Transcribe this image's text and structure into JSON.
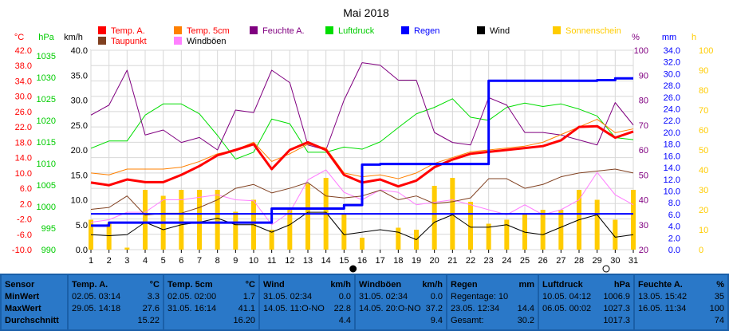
{
  "chart_data": {
    "type": "line",
    "title": "Mai 2018",
    "x": [
      1,
      2,
      3,
      4,
      5,
      6,
      7,
      8,
      9,
      10,
      11,
      12,
      13,
      14,
      15,
      16,
      17,
      18,
      19,
      20,
      21,
      22,
      23,
      24,
      25,
      26,
      27,
      28,
      29,
      30,
      31
    ],
    "xlim": [
      1,
      31
    ],
    "axes": {
      "temp_c": {
        "label": "°C",
        "min": -10,
        "max": 42,
        "ticks": [
          42.0,
          38.0,
          34.0,
          30.0,
          26.0,
          22.0,
          18.0,
          14.0,
          10.0,
          6.0,
          2.0,
          -2.0,
          -6.0,
          -10.0
        ],
        "color": "#ff0000"
      },
      "pressure_hpa": {
        "label": "hPa",
        "min": 990,
        "max": 1036.25,
        "ticks": [
          1035,
          1030,
          1025,
          1020,
          1015,
          1010,
          1005,
          1000,
          995,
          990
        ],
        "color": "#00cc00"
      },
      "wind_kmh": {
        "label": "km/h",
        "min": 0,
        "max": 40,
        "ticks": [
          40.0,
          35.0,
          30.0,
          25.0,
          20.0,
          15.0,
          10.0,
          5.0,
          0.0
        ],
        "color": "#000000"
      },
      "humidity_pct": {
        "label": "%",
        "min": 20,
        "max": 100,
        "ticks": [
          100,
          90,
          80,
          70,
          60,
          50,
          40,
          30,
          20
        ],
        "color": "#800080"
      },
      "rain_mm": {
        "label": "mm",
        "min": 0,
        "max": 34.0,
        "ticks": [
          34.0,
          32.0,
          30.0,
          28.0,
          26.0,
          24.0,
          22.0,
          20.0,
          18.0,
          16.0,
          14.0,
          12.0,
          10.0,
          8.0,
          6.0,
          4.0,
          2.0,
          0.0
        ],
        "color": "#0000ff"
      },
      "sun_h": {
        "label": "h",
        "min": 0,
        "max": 100,
        "ticks": [
          100,
          90,
          80,
          70,
          60,
          50,
          40,
          30,
          20,
          10,
          0
        ],
        "color": "#ffcc00"
      }
    },
    "legend": [
      {
        "name": "Temp. A.",
        "color": "#ff0000"
      },
      {
        "name": "Temp. 5cm",
        "color": "#ff8000"
      },
      {
        "name": "Feuchte A.",
        "color": "#800080"
      },
      {
        "name": "Luftdruck",
        "color": "#00dd00"
      },
      {
        "name": "Regen",
        "color": "#0000ff"
      },
      {
        "name": "Wind",
        "color": "#000000"
      },
      {
        "name": "Sonnenschein",
        "color": "#ffcc00"
      },
      {
        "name": "Taupunkt",
        "color": "#804020"
      },
      {
        "name": "Windböen",
        "color": "#ff80ff"
      }
    ],
    "series": [
      {
        "name": "Luftdruck",
        "axis": "pressure_hpa",
        "color": "#00dd00",
        "width": 1,
        "values": [
          1013.5,
          1015.2,
          1015.2,
          1021.2,
          1023.8,
          1023.8,
          1021.5,
          1016.5,
          1011.0,
          1012.6,
          1020.3,
          1019.2,
          1012.6,
          1012.6,
          1013.8,
          1013.3,
          1015.0,
          1018.3,
          1021.5,
          1023.0,
          1025.0,
          1020.7,
          1020.0,
          1023.0,
          1024.0,
          1023.2,
          1023.8,
          1022.6,
          1021.0,
          1016.0,
          1015.5
        ]
      },
      {
        "name": "Feuchte A.",
        "axis": "humidity_pct",
        "color": "#800080",
        "width": 1,
        "values": [
          74,
          78,
          92,
          66,
          68,
          63,
          65,
          60,
          76,
          75,
          92,
          87,
          62,
          60,
          80,
          95,
          94,
          88,
          88,
          67,
          63,
          62,
          81,
          78,
          67,
          67,
          66,
          64,
          62,
          79,
          70
        ]
      },
      {
        "name": "Windböen",
        "axis": "wind_kmh",
        "color": "#ff80ff",
        "width": 1,
        "values": [
          5.5,
          6.0,
          7.5,
          7.5,
          10.0,
          10.0,
          10.5,
          11.0,
          10.0,
          9.8,
          5.0,
          7.5,
          14.0,
          16.0,
          11.5,
          10.0,
          12.0,
          11.5,
          9.0,
          9.5,
          10.0,
          9.0,
          8.0,
          7.0,
          9.0,
          7.0,
          8.0,
          10.0,
          15.5,
          11.0,
          9.0
        ]
      },
      {
        "name": "Wind",
        "axis": "wind_kmh",
        "color": "#000000",
        "width": 1,
        "values": [
          3.0,
          2.8,
          3.0,
          5.5,
          4.0,
          5.0,
          5.5,
          6.3,
          5.0,
          5.0,
          3.5,
          5.0,
          7.5,
          7.5,
          3.0,
          3.5,
          4.0,
          3.5,
          2.0,
          5.5,
          7.0,
          4.5,
          4.5,
          5.0,
          3.5,
          3.0,
          4.5,
          6.0,
          7.0,
          2.5,
          3.0
        ]
      },
      {
        "name": "Taupunkt",
        "axis": "temp_c",
        "color": "#804020",
        "width": 1,
        "values": [
          0.5,
          1.0,
          4.0,
          -1.0,
          -0.5,
          -0.5,
          1.0,
          3.0,
          6.0,
          7.0,
          4.8,
          6.0,
          7.5,
          4.0,
          3.5,
          4.0,
          5.5,
          3.0,
          4.0,
          2.0,
          2.5,
          3.5,
          8.5,
          8.5,
          6.0,
          7.0,
          9.0,
          10.0,
          10.5,
          11.0,
          10.0
        ]
      },
      {
        "name": "Temp. 5cm",
        "axis": "temp_c",
        "color": "#ff8000",
        "width": 1,
        "values": [
          10.0,
          9.5,
          11.0,
          11.0,
          11.0,
          11.5,
          13.0,
          15.0,
          16.0,
          18.0,
          13.0,
          15.0,
          17.5,
          16.5,
          10.0,
          9.0,
          9.5,
          8.5,
          10.0,
          12.5,
          14.0,
          15.5,
          16.0,
          16.5,
          17.0,
          18.0,
          20.0,
          22.0,
          24.0,
          20.5,
          21.5
        ]
      },
      {
        "name": "Temp. A.",
        "axis": "temp_c",
        "color": "#ff0000",
        "width": 3,
        "values": [
          7.5,
          6.8,
          8.3,
          7.6,
          7.6,
          9.5,
          11.8,
          14.6,
          16.0,
          17.5,
          11.0,
          16.0,
          18.0,
          16.0,
          9.5,
          7.5,
          8.3,
          6.5,
          8.0,
          11.5,
          13.5,
          15.0,
          15.5,
          16.0,
          16.5,
          17.0,
          18.5,
          22.0,
          22.2,
          19.2,
          20.8
        ]
      },
      {
        "name": "Regen",
        "axis": "rain_mm",
        "color": "#0000ff",
        "width": 3,
        "step": true,
        "values": [
          4.1,
          4.6,
          4.6,
          4.6,
          4.6,
          4.6,
          4.6,
          4.6,
          4.6,
          4.6,
          7.0,
          7.0,
          7.0,
          7.0,
          7.6,
          14.5,
          14.6,
          14.6,
          14.6,
          14.6,
          14.6,
          14.6,
          28.8,
          28.8,
          28.8,
          28.8,
          28.8,
          28.8,
          28.9,
          29.2,
          29.2
        ]
      },
      {
        "name": "Regen-Mittel",
        "axis": "rain_mm",
        "color": "#0000ff",
        "width": 2,
        "constant": 6.1
      },
      {
        "name": "Sonnenschein",
        "axis": "sun_h",
        "color": "#ffcc00",
        "type": "bar",
        "values": [
          15,
          13,
          1,
          30,
          27,
          30,
          30,
          30,
          19,
          25,
          10,
          20,
          33,
          36,
          18,
          6,
          0,
          11,
          10,
          32,
          36,
          24,
          13,
          15,
          18,
          20,
          20,
          30,
          25,
          15,
          30
        ]
      }
    ],
    "markers": [
      {
        "day": 15.5,
        "symbol": "filled-circle"
      },
      {
        "day": 29.5,
        "symbol": "open-circle"
      }
    ]
  },
  "stats": {
    "sensor": {
      "title": "Sensor",
      "rows": [
        "MinWert",
        "MaxWert",
        "Durchschnitt"
      ]
    },
    "blocks": [
      {
        "name": "Temp. A.",
        "unit": "°C",
        "rows": [
          [
            "02.05.  03:14",
            "3.3"
          ],
          [
            "29.05.  14:18",
            "27.6"
          ],
          [
            "",
            "15.22"
          ]
        ]
      },
      {
        "name": "Temp. 5cm",
        "unit": "°C",
        "rows": [
          [
            "02.05.  02:00",
            "1.7"
          ],
          [
            "31.05.  16:14",
            "41.1"
          ],
          [
            "",
            "16.20"
          ]
        ]
      },
      {
        "name": "Wind",
        "unit": "km/h",
        "rows": [
          [
            "31.05.  02:34",
            "0.0"
          ],
          [
            "14.05.  11:O-NO",
            "22.8"
          ],
          [
            "",
            "4.4"
          ]
        ]
      },
      {
        "name": "Windböen",
        "unit": "km/h",
        "rows": [
          [
            "31.05.  02:34",
            "0.0"
          ],
          [
            "14.05.  20:O-NO",
            "37.2"
          ],
          [
            "",
            "9.4"
          ]
        ]
      },
      {
        "name": "Regen",
        "unit": "mm",
        "rows": [
          [
            "Regentage: 10",
            ""
          ],
          [
            "23.05.  12:34",
            "14.4"
          ],
          [
            "Gesamt:",
            "30.2"
          ]
        ]
      },
      {
        "name": "Luftdruck",
        "unit": "hPa",
        "rows": [
          [
            "10.05.  04:12",
            "1006.9"
          ],
          [
            "06.05.  00:02",
            "1027.3"
          ],
          [
            "",
            "1017.3"
          ]
        ]
      },
      {
        "name": "Feuchte A.",
        "unit": "%",
        "rows": [
          [
            "13.05.  15:42",
            "35"
          ],
          [
            "16.05.  11:34",
            "100"
          ],
          [
            "",
            "74"
          ]
        ]
      }
    ]
  }
}
